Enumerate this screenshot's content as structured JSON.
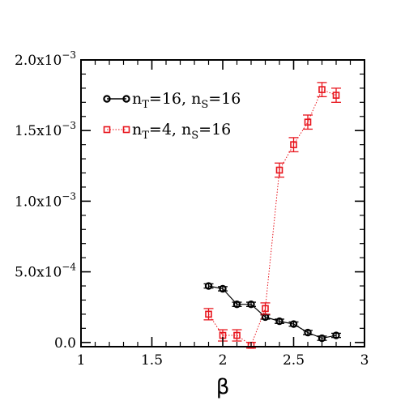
{
  "chart_data": {
    "type": "scatter",
    "title": "",
    "xlabel": "β",
    "ylabel": "",
    "xlim": [
      1,
      3
    ],
    "ylim": [
      -3e-05,
      0.002
    ],
    "grid": false,
    "legend_position": "top-left",
    "x_ticks": [
      {
        "value": 1,
        "label": "1"
      },
      {
        "value": 1.5,
        "label": "1.5"
      },
      {
        "value": 2,
        "label": "2"
      },
      {
        "value": 2.5,
        "label": "2.5"
      },
      {
        "value": 3,
        "label": "3"
      }
    ],
    "y_ticks": [
      {
        "value": 0,
        "mantissa": "0.0",
        "exponent": ""
      },
      {
        "value": 0.0005,
        "mantissa": "5.0x10",
        "exponent": "−4"
      },
      {
        "value": 0.001,
        "mantissa": "1.0x10",
        "exponent": "−3"
      },
      {
        "value": 0.0015,
        "mantissa": "1.5x10",
        "exponent": "−3"
      },
      {
        "value": 0.002,
        "mantissa": "2.0x10",
        "exponent": "−3"
      }
    ],
    "series": [
      {
        "name": "n_T=16, n_S=16",
        "legend": {
          "n1": "n",
          "sub1": "T",
          "mid": "=16, n",
          "sub2": "S",
          "end": "=16"
        },
        "color": "#000000",
        "marker": "circle",
        "line_style": "solid",
        "x": [
          1.9,
          2.0,
          2.1,
          2.2,
          2.3,
          2.4,
          2.5,
          2.6,
          2.7,
          2.8
        ],
        "y": [
          0.0004,
          0.00038,
          0.00027,
          0.00027,
          0.00018,
          0.00015,
          0.00013,
          7e-05,
          3e-05,
          5e-05
        ],
        "err": [
          1.5e-05,
          1.5e-05,
          1.5e-05,
          1.5e-05,
          1.5e-05,
          1.5e-05,
          1.5e-05,
          1.5e-05,
          1.5e-05,
          1.5e-05
        ]
      },
      {
        "name": "n_T=4, n_S=16",
        "legend": {
          "n1": "n",
          "sub1": "T",
          "mid": "=4, n",
          "sub2": "S",
          "end": "=16"
        },
        "color": "#e8141c",
        "marker": "square",
        "line_style": "dotted",
        "x": [
          1.9,
          2.0,
          2.1,
          2.2,
          2.3,
          2.4,
          2.5,
          2.6,
          2.7,
          2.8
        ],
        "y": [
          0.0002,
          5e-05,
          5e-05,
          -2e-05,
          0.00024,
          0.00122,
          0.0014,
          0.00156,
          0.00179,
          0.00175
        ],
        "err": [
          4e-05,
          4e-05,
          4e-05,
          2e-05,
          4e-05,
          5e-05,
          5e-05,
          5e-05,
          5e-05,
          5e-05
        ]
      }
    ]
  }
}
